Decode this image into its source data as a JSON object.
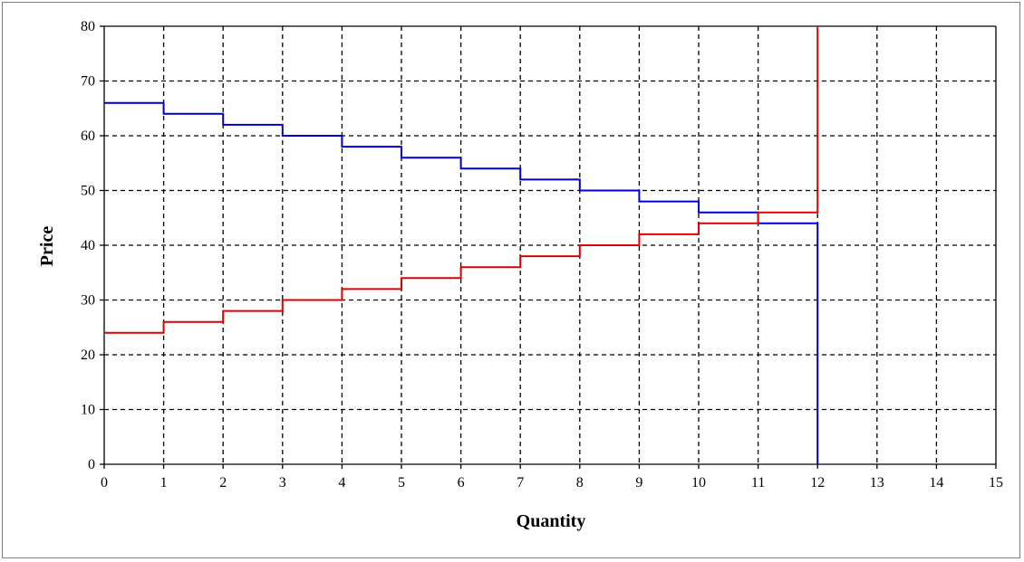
{
  "chart_data": {
    "type": "line",
    "step": true,
    "title": "",
    "xlabel": "Quantity",
    "ylabel": "Price",
    "xlim": [
      0,
      15
    ],
    "ylim": [
      0,
      80
    ],
    "xticks": [
      0,
      1,
      2,
      3,
      4,
      5,
      6,
      7,
      8,
      9,
      10,
      11,
      12,
      13,
      14,
      15
    ],
    "yticks": [
      0,
      10,
      20,
      30,
      40,
      50,
      60,
      70,
      80
    ],
    "grid": true,
    "legend": "none",
    "series": [
      {
        "color": "#0000cc",
        "points": [
          [
            0,
            66
          ],
          [
            1,
            66
          ],
          [
            1,
            64
          ],
          [
            2,
            64
          ],
          [
            2,
            62
          ],
          [
            3,
            62
          ],
          [
            3,
            60
          ],
          [
            4,
            60
          ],
          [
            4,
            58
          ],
          [
            5,
            58
          ],
          [
            5,
            56
          ],
          [
            6,
            56
          ],
          [
            6,
            54
          ],
          [
            7,
            54
          ],
          [
            7,
            52
          ],
          [
            8,
            52
          ],
          [
            8,
            50
          ],
          [
            9,
            50
          ],
          [
            9,
            48
          ],
          [
            10,
            48
          ],
          [
            10,
            46
          ],
          [
            11,
            46
          ],
          [
            11,
            44
          ],
          [
            12,
            44
          ],
          [
            12,
            0
          ]
        ]
      },
      {
        "color": "#dd0000",
        "points": [
          [
            0,
            24
          ],
          [
            1,
            24
          ],
          [
            1,
            26
          ],
          [
            2,
            26
          ],
          [
            2,
            28
          ],
          [
            3,
            28
          ],
          [
            3,
            30
          ],
          [
            4,
            30
          ],
          [
            4,
            32
          ],
          [
            5,
            32
          ],
          [
            5,
            34
          ],
          [
            6,
            34
          ],
          [
            6,
            36
          ],
          [
            7,
            36
          ],
          [
            7,
            38
          ],
          [
            8,
            38
          ],
          [
            8,
            40
          ],
          [
            9,
            40
          ],
          [
            9,
            42
          ],
          [
            10,
            42
          ],
          [
            10,
            44
          ],
          [
            11,
            44
          ],
          [
            11,
            46
          ],
          [
            12,
            46
          ],
          [
            12,
            80
          ]
        ]
      }
    ]
  }
}
